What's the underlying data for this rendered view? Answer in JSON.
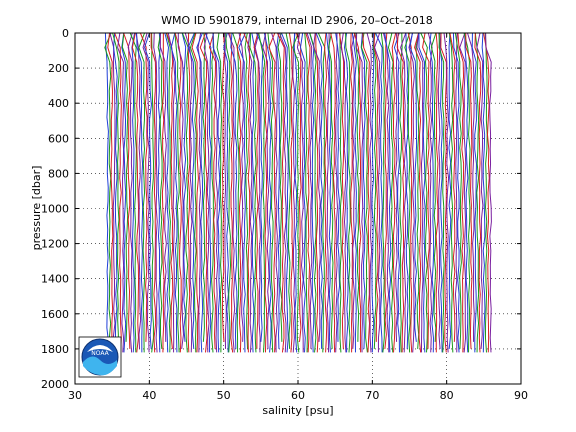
{
  "chart_data": {
    "type": "line",
    "title": "WMO ID 5901879, internal ID 2906, 20–Oct–2018",
    "xlabel": "salinity [psu]",
    "ylabel": "pressure [dbar]",
    "xlim": [
      30,
      90
    ],
    "ylim": [
      2000,
      0
    ],
    "y_axis_reversed": true,
    "grid": true,
    "legend": "none",
    "x_ticks": [
      "30",
      "40",
      "50",
      "60",
      "70",
      "80",
      "90"
    ],
    "y_ticks": [
      "0",
      "200",
      "400",
      "600",
      "800",
      "1000",
      "1200",
      "1400",
      "1600",
      "1800",
      "2000"
    ],
    "series_count": 180,
    "series_colors": [
      "#1f3fd8",
      "#1a9a1a",
      "#d81f1f",
      "#7a1fa0"
    ],
    "profile_pressure_range": [
      0,
      1820
    ],
    "first_profile_salinity": 34.4,
    "last_profile_salinity": 85.9,
    "profile_offset_step": 0.29
  },
  "logo": {
    "text": "NOAA"
  }
}
